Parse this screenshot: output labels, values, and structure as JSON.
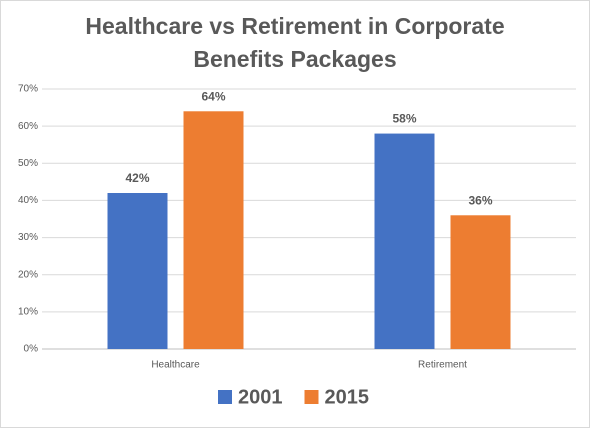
{
  "chart_data": {
    "type": "bar",
    "title": "Healthcare vs Retirement in Corporate Benefits Packages",
    "categories": [
      "Healthcare",
      "Retirement"
    ],
    "series": [
      {
        "name": "2001",
        "color": "#4472c4",
        "values": [
          42,
          58
        ],
        "value_labels": [
          "42%",
          "58%"
        ]
      },
      {
        "name": "2015",
        "color": "#ed7d31",
        "values": [
          64,
          36
        ],
        "value_labels": [
          "64%",
          "36%"
        ]
      }
    ],
    "ylim": [
      0,
      70
    ],
    "yticks": [
      {
        "value": 0,
        "label": "0%"
      },
      {
        "value": 10,
        "label": "10%"
      },
      {
        "value": 20,
        "label": "20%"
      },
      {
        "value": 30,
        "label": "30%"
      },
      {
        "value": 40,
        "label": "40%"
      },
      {
        "value": 50,
        "label": "50%"
      },
      {
        "value": 60,
        "label": "60%"
      },
      {
        "value": 70,
        "label": "70%"
      }
    ],
    "grid": true,
    "legend": "bottom"
  }
}
